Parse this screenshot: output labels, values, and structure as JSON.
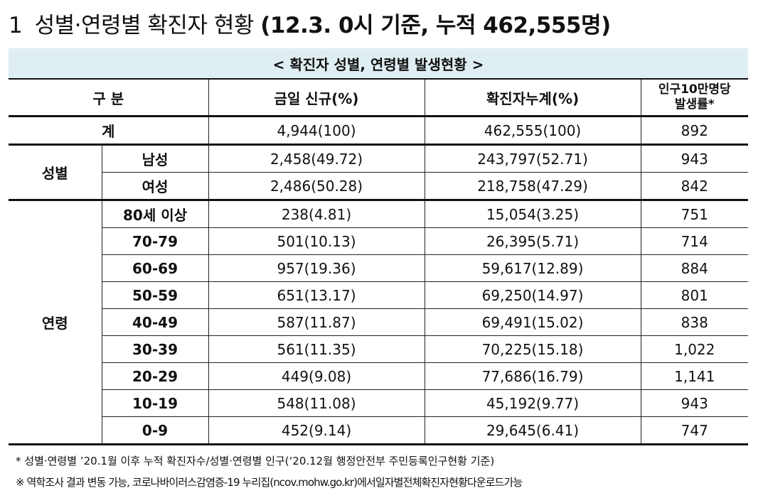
{
  "heading": {
    "number": "1",
    "title": "성별·연령별 확진자 현황",
    "subtitle": "(12.3. 0시 기준, 누적 462,555명)"
  },
  "table": {
    "caption": "< 확진자 성별, 연령별 발생현황 >",
    "headers": {
      "category": "구 분",
      "new_today": "금일 신규(%)",
      "cumulative": "확진자누계(%)",
      "per_100k_line1": "인구10만명당",
      "per_100k_line2": "발생률*"
    },
    "total": {
      "label": "계",
      "new": "4,944(100)",
      "cum": "462,555(100)",
      "rate": "892"
    },
    "sex": {
      "label": "성별",
      "rows": [
        {
          "label": "남성",
          "new": "2,458(49.72)",
          "cum": "243,797(52.71)",
          "rate": "943"
        },
        {
          "label": "여성",
          "new": "2,486(50.28)",
          "cum": "218,758(47.29)",
          "rate": "842"
        }
      ]
    },
    "age": {
      "label": "연령",
      "rows": [
        {
          "label": "80세 이상",
          "new": "238(4.81)",
          "cum": "15,054(3.25)",
          "rate": "751"
        },
        {
          "label": "70-79",
          "new": "501(10.13)",
          "cum": "26,395(5.71)",
          "rate": "714"
        },
        {
          "label": "60-69",
          "new": "957(19.36)",
          "cum": "59,617(12.89)",
          "rate": "884"
        },
        {
          "label": "50-59",
          "new": "651(13.17)",
          "cum": "69,250(14.97)",
          "rate": "801"
        },
        {
          "label": "40-49",
          "new": "587(11.87)",
          "cum": "69,491(15.02)",
          "rate": "838"
        },
        {
          "label": "30-39",
          "new": "561(11.35)",
          "cum": "70,225(15.18)",
          "rate": "1,022"
        },
        {
          "label": "20-29",
          "new": "449(9.08)",
          "cum": "77,686(16.79)",
          "rate": "1,141"
        },
        {
          "label": "10-19",
          "new": "548(11.08)",
          "cum": "45,192(9.77)",
          "rate": "943"
        },
        {
          "label": "0-9",
          "new": "452(9.14)",
          "cum": "29,645(6.41)",
          "rate": "747"
        }
      ]
    }
  },
  "notes": [
    "* 성별·연령별 ’20.1월 이후 누적 확진자수/성별·연령별 인구(‘20.12월 행정안전부 주민등록인구현황 기준)",
    "※ 역학조사 결과 변동 가능, 코로나바이러스감염증-19 누리집(ncov.mohw.go.kr)에서일자별전체확진자현황다운로드가능"
  ]
}
